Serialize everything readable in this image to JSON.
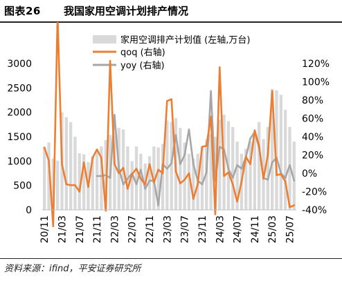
{
  "figure": {
    "label": "图表26",
    "title": "我国家用空调计划排产情况"
  },
  "source": "资料来源：ifind，平安证券研究所",
  "chart_data": {
    "type": "bar",
    "title": "",
    "xlabel": "",
    "ylabel": "",
    "ylim": [
      0,
      3000
    ],
    "y2lim": [
      -0.4,
      1.2
    ],
    "y_ticks": [
      "0",
      "500",
      "1000",
      "1500",
      "2000",
      "2500",
      "3000"
    ],
    "y2_ticks": [
      "-40%",
      "-20%",
      "0%",
      "20%",
      "40%",
      "60%",
      "80%",
      "100%",
      "120%"
    ],
    "x_tick_labels": [
      "20/11",
      "21/03",
      "21/07",
      "21/11",
      "22/03",
      "22/07",
      "22/11",
      "23/03",
      "23/07",
      "23/11",
      "24/03",
      "24/07",
      "24/11",
      "25/03",
      "25/07"
    ],
    "legend_position": "top",
    "grid": false,
    "colors": {
      "bar": "#d9d9d9",
      "qoq": "#ed7d31",
      "yoy": "#a6a6a6"
    },
    "categories": [
      "20/11",
      "20/12",
      "21/01",
      "21/02",
      "21/03",
      "21/04",
      "21/05",
      "21/06",
      "21/07",
      "21/08",
      "21/09",
      "21/10",
      "21/11",
      "21/12",
      "22/01",
      "22/02",
      "22/03",
      "22/04",
      "22/05",
      "22/06",
      "22/07",
      "22/08",
      "22/09",
      "22/10",
      "22/11",
      "22/12",
      "23/01",
      "23/02",
      "23/03",
      "23/04",
      "23/05",
      "23/06",
      "23/07",
      "23/08",
      "23/09",
      "23/10",
      "23/11",
      "23/12",
      "24/01",
      "24/02",
      "24/03",
      "24/04",
      "24/05",
      "24/06",
      "24/07",
      "24/08",
      "24/09",
      "24/10",
      "24/11",
      "24/12",
      "25/01",
      "25/02",
      "25/03",
      "25/04",
      "25/05",
      "25/06",
      "25/07",
      "25/08"
    ],
    "series": [
      {
        "name": "家用空调排产计划值 (左轴,万台)",
        "axis": "left",
        "kind": "bar",
        "values": [
          1300,
          1380,
          1050,
          1010,
          2000,
          1900,
          1800,
          1500,
          1160,
          1140,
          980,
          1100,
          1250,
          1300,
          1430,
          1540,
          1750,
          1680,
          1650,
          1300,
          1000,
          1300,
          1150,
          950,
          1100,
          1300,
          1280,
          1350,
          1830,
          1800,
          1880,
          1680,
          1380,
          1150,
          1050,
          1150,
          1300,
          1450,
          1550,
          1500,
          1850,
          1950,
          1820,
          1700,
          1400,
          1150,
          1250,
          1400,
          1600,
          1800,
          1450,
          1700,
          2480,
          2450,
          2360,
          2050,
          1700,
          1400
        ]
      },
      {
        "name": "qoq (右轴)",
        "axis": "right",
        "kind": "line",
        "values": [
          0.28,
          0.14,
          -0.58,
          1.73,
          0.1,
          -0.12,
          -0.13,
          -0.13,
          -0.2,
          0.12,
          -0.15,
          0.17,
          0.26,
          0.17,
          -0.41,
          1.23,
          0.1,
          0.0,
          0.06,
          -0.17,
          -0.01,
          0.05,
          -0.06,
          -0.12,
          0.1,
          -0.1,
          0.04,
          0.0,
          0.79,
          0.81,
          0.02,
          -0.11,
          -0.07,
          0.0,
          -0.28,
          -0.12,
          0.29,
          0.3,
          0.62,
          -0.45,
          1.16,
          -0.03,
          0.01,
          -0.12,
          -0.31,
          -0.09,
          0.18,
          0.1,
          0.47,
          0.3,
          -0.06,
          0.2,
          0.9,
          -0.02,
          -0.01,
          -0.09,
          -0.37,
          -0.35
        ]
      },
      {
        "name": "yoy (右轴)",
        "axis": "right",
        "kind": "line",
        "values": [
          null,
          null,
          null,
          null,
          null,
          null,
          null,
          null,
          null,
          null,
          null,
          null,
          -0.03,
          -0.03,
          -0.02,
          -0.05,
          0.64,
          0.05,
          -0.12,
          -0.06,
          0.0,
          -0.12,
          0.04,
          -0.17,
          -0.08,
          -0.08,
          -0.35,
          0.1,
          0.05,
          0.11,
          0.42,
          0.1,
          0.2,
          0.48,
          0.1,
          -0.08,
          -0.12,
          0.01,
          0.9,
          -0.08,
          0.29,
          0.26,
          0.05,
          -0.05,
          0.09,
          0.05,
          0.18,
          0.38,
          0.45,
          0.28,
          -0.05,
          -0.07,
          0.12,
          0.17,
          0.0,
          -0.05,
          0.09,
          -0.08
        ]
      }
    ]
  }
}
